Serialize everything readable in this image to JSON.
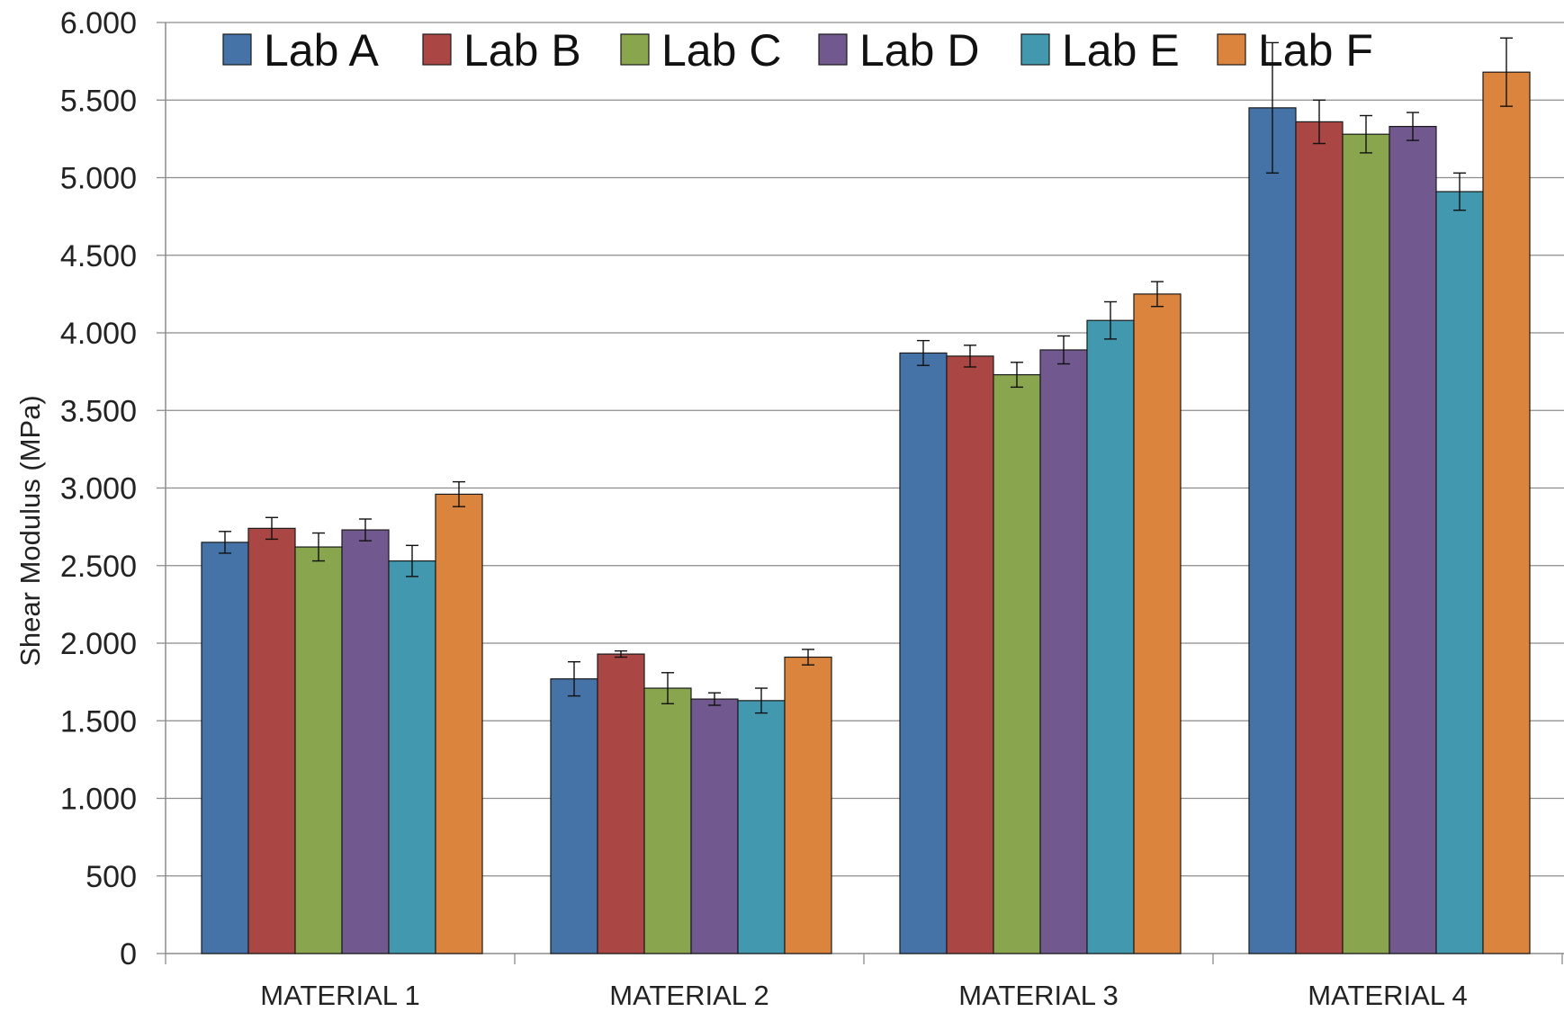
{
  "chart_data": {
    "type": "bar",
    "title": "",
    "xlabel": "",
    "ylabel": "Shear Modulus (MPa)",
    "ylim": [
      0,
      6000
    ],
    "yticks": [
      0,
      500,
      1000,
      1500,
      2000,
      2500,
      3000,
      3500,
      4000,
      4500,
      5000,
      5500,
      6000
    ],
    "ytick_labels": [
      "0",
      "500",
      "1.000",
      "1.500",
      "2.000",
      "2.500",
      "3.000",
      "3.500",
      "4.000",
      "4.500",
      "5.000",
      "5.500",
      "6.000"
    ],
    "categories": [
      "MATERIAL 1",
      "MATERIAL 2",
      "MATERIAL 3",
      "MATERIAL 4"
    ],
    "grid": true,
    "legend_position": "top",
    "error_bars": true,
    "series": [
      {
        "name": "Lab A",
        "color": "#4572A7",
        "values": [
          2650,
          1770,
          3870,
          5450
        ],
        "errors": [
          70,
          110,
          80,
          420
        ]
      },
      {
        "name": "Lab B",
        "color": "#AA4643",
        "values": [
          2740,
          1930,
          3850,
          5360
        ],
        "errors": [
          70,
          20,
          70,
          140
        ]
      },
      {
        "name": "Lab C",
        "color": "#89A54E",
        "values": [
          2620,
          1710,
          3730,
          5280
        ],
        "errors": [
          90,
          100,
          80,
          120
        ]
      },
      {
        "name": "Lab D",
        "color": "#71588F",
        "values": [
          2730,
          1640,
          3890,
          5330
        ],
        "errors": [
          70,
          40,
          90,
          90
        ]
      },
      {
        "name": "Lab E",
        "color": "#4198AF",
        "values": [
          2530,
          1630,
          4080,
          4910
        ],
        "errors": [
          100,
          80,
          120,
          120
        ]
      },
      {
        "name": "Lab F",
        "color": "#DB843D",
        "values": [
          2960,
          1910,
          4250,
          5680
        ],
        "errors": [
          80,
          50,
          80,
          220
        ]
      }
    ]
  }
}
